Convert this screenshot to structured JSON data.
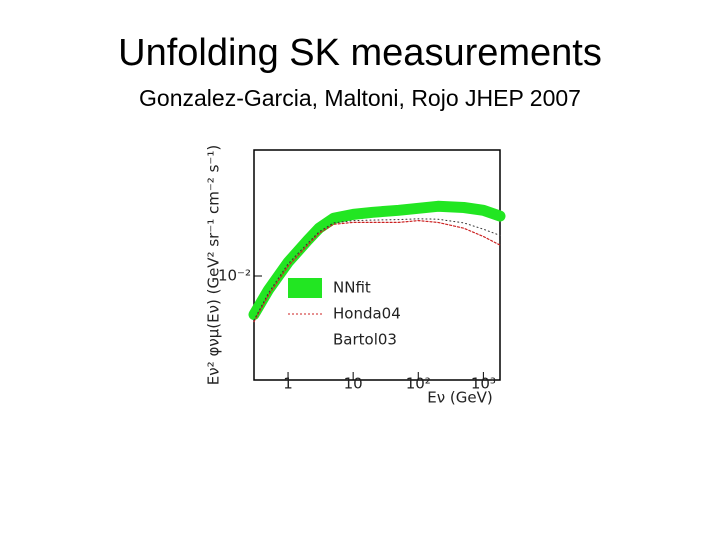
{
  "chart_data": {
    "type": "line",
    "title": "Unfolding SK measurements",
    "subtitle": "Gonzalez-Garcia, Maltoni, Rojo JHEP 2007",
    "x_label": "Eν (GeV)",
    "y_label": "Eν² φνμ(Eν) (GeV² sr⁻¹ cm⁻² s⁻¹)",
    "x": [
      0.3,
      0.5,
      1,
      2,
      3,
      5,
      10,
      20,
      50,
      100,
      200,
      500,
      1000,
      1800
    ],
    "series": [
      {
        "name": "NNfit",
        "color": "#22e622",
        "values": [
          0.0064,
          0.0085,
          0.0117,
          0.0151,
          0.0174,
          0.0195,
          0.0204,
          0.0209,
          0.0214,
          0.0219,
          0.0224,
          0.0221,
          0.0214,
          0.02
        ]
      },
      {
        "name": "Honda04",
        "color": "#cc2222",
        "values": [
          0.0059,
          0.008,
          0.0112,
          0.0143,
          0.0164,
          0.0182,
          0.0186,
          0.0186,
          0.0186,
          0.019,
          0.0186,
          0.0174,
          0.0158,
          0.0143
        ]
      },
      {
        "name": "Bartol03",
        "color": "#333333",
        "values": [
          0.006,
          0.0082,
          0.0115,
          0.0146,
          0.0167,
          0.0185,
          0.019,
          0.0191,
          0.0192,
          0.0194,
          0.0193,
          0.0185,
          0.0172,
          0.016
        ]
      }
    ],
    "xlim": [
      0.3,
      1800
    ],
    "ylim": [
      0.003,
      0.043
    ],
    "xscale": "log",
    "yscale": "log",
    "xticks": [
      1,
      10,
      {
        "value": 100,
        "label": "10²"
      },
      {
        "value": 1000,
        "label": "10³"
      }
    ],
    "yticks": [
      {
        "value": 0.01,
        "label": "10⁻²"
      }
    ]
  }
}
